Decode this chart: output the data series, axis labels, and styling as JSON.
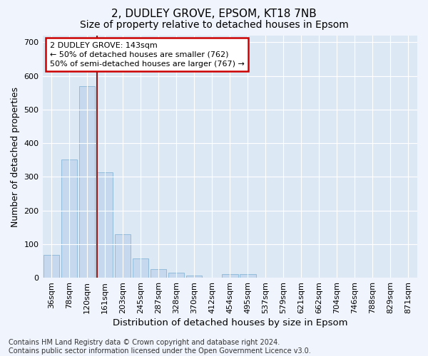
{
  "title": "2, DUDLEY GROVE, EPSOM, KT18 7NB",
  "subtitle": "Size of property relative to detached houses in Epsom",
  "xlabel": "Distribution of detached houses by size in Epsom",
  "ylabel": "Number of detached properties",
  "bar_color": "#c5d8ee",
  "bar_edge_color": "#7aafd4",
  "background_color": "#dde8f5",
  "grid_color": "#ffffff",
  "fig_color": "#f0f4fc",
  "categories": [
    "36sqm",
    "78sqm",
    "120sqm",
    "161sqm",
    "203sqm",
    "245sqm",
    "287sqm",
    "328sqm",
    "370sqm",
    "412sqm",
    "454sqm",
    "495sqm",
    "537sqm",
    "579sqm",
    "621sqm",
    "662sqm",
    "704sqm",
    "746sqm",
    "788sqm",
    "829sqm",
    "871sqm"
  ],
  "values": [
    68,
    352,
    570,
    313,
    130,
    57,
    25,
    15,
    7,
    0,
    10,
    10,
    0,
    0,
    0,
    0,
    0,
    0,
    0,
    0,
    0
  ],
  "ylim": [
    0,
    720
  ],
  "yticks": [
    0,
    100,
    200,
    300,
    400,
    500,
    600,
    700
  ],
  "vline_color": "#8b1a1a",
  "vline_pos": 2.548,
  "annotation_text": "2 DUDLEY GROVE: 143sqm\n← 50% of detached houses are smaller (762)\n50% of semi-detached houses are larger (767) →",
  "annotation_box_color": "#ffffff",
  "annotation_box_edge": "#cc0000",
  "footer": "Contains HM Land Registry data © Crown copyright and database right 2024.\nContains public sector information licensed under the Open Government Licence v3.0.",
  "title_fontsize": 11,
  "subtitle_fontsize": 10,
  "xlabel_fontsize": 9.5,
  "ylabel_fontsize": 9,
  "tick_fontsize": 8,
  "footer_fontsize": 7,
  "annot_fontsize": 8
}
